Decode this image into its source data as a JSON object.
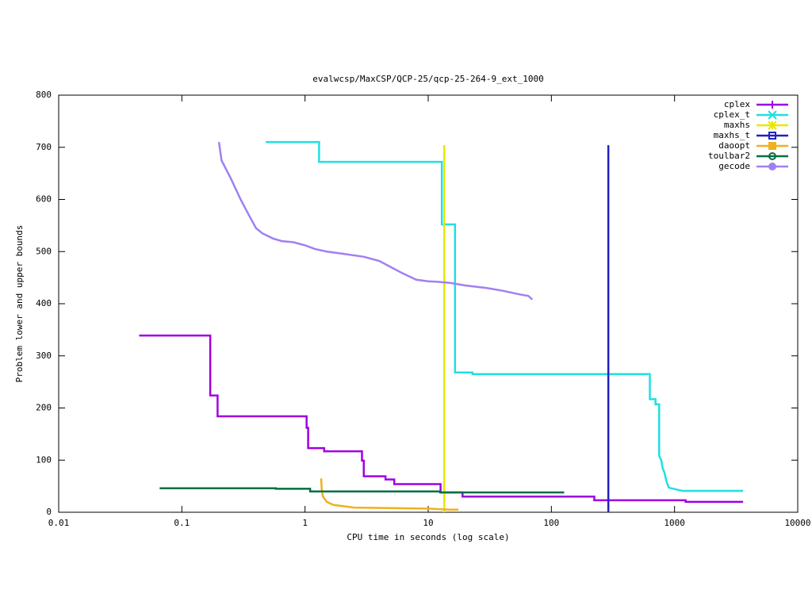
{
  "chart_data": {
    "type": "line",
    "title": "evalwcsp/MaxCSP/QCP-25/qcp-25-264-9_ext_1000",
    "x_label": "CPU time in seconds (log scale)",
    "y_label": "Problem lower and upper bounds",
    "xscale": "log",
    "xlim": [
      0.01,
      10000
    ],
    "xticks": [
      0.01,
      0.1,
      1,
      10,
      100,
      1000,
      10000
    ],
    "ylim": [
      0,
      800
    ],
    "yticks": [
      0,
      100,
      200,
      300,
      400,
      500,
      600,
      700,
      800
    ],
    "legend": "upper right",
    "series": [
      {
        "name": "cplex",
        "color": "#a000e0",
        "marker": "plus",
        "x": [
          0.045,
          0.17,
          0.17,
          0.195,
          0.195,
          1.03,
          1.03,
          1.06,
          1.06,
          1.43,
          1.43,
          2.9,
          2.9,
          3.0,
          3.0,
          4.5,
          4.5,
          5.3,
          5.3,
          12.6,
          12.6,
          19,
          19,
          223,
          223,
          1230,
          1230,
          3600
        ],
        "values": [
          339,
          339,
          224,
          224,
          184,
          184,
          162,
          162,
          123,
          123,
          117,
          117,
          99,
          99,
          69,
          69,
          63,
          63,
          54,
          54,
          38,
          38,
          30,
          30,
          23,
          23,
          20,
          20
        ]
      },
      {
        "name": "cplex_t",
        "color": "#20e0e0",
        "marker": "cross",
        "x": [
          0.48,
          1.3,
          1.3,
          12.9,
          12.9,
          16.5,
          16.5,
          22.9,
          22.9,
          630,
          630,
          700,
          700,
          750,
          750,
          780,
          800,
          830,
          860,
          900,
          1160,
          3600
        ],
        "values": [
          710,
          710,
          672,
          672,
          552,
          552,
          268,
          268,
          265,
          265,
          217,
          217,
          207,
          207,
          108,
          100,
          85,
          75,
          59,
          47,
          41,
          41
        ]
      },
      {
        "name": "maxhs",
        "color": "#e8e800",
        "marker": "star",
        "x": [
          13.5,
          13.5
        ],
        "values": [
          704,
          0
        ]
      },
      {
        "name": "maxhs_t",
        "color": "#2020c0",
        "marker": "square",
        "x": [
          290,
          290
        ],
        "values": [
          704,
          0
        ]
      },
      {
        "name": "daoopt",
        "color": "#f0b020",
        "marker": "filled-square",
        "x": [
          1.35,
          1.37,
          1.4,
          1.5,
          1.7,
          2,
          2.5,
          5,
          10,
          12,
          15,
          17.6
        ],
        "values": [
          65,
          40,
          30,
          20,
          14,
          12,
          9,
          8,
          7,
          6,
          5,
          5
        ]
      },
      {
        "name": "toulbar2",
        "color": "#007040",
        "marker": "circle",
        "x": [
          0.066,
          0.58,
          0.58,
          1.1,
          1.1,
          12.5,
          12.5,
          127
        ],
        "values": [
          46,
          46,
          45,
          45,
          40,
          40,
          38,
          38
        ]
      },
      {
        "name": "gecode",
        "color": "#a080f0",
        "marker": "filled-circle",
        "x": [
          0.2,
          0.21,
          0.25,
          0.3,
          0.35,
          0.4,
          0.45,
          0.55,
          0.65,
          0.8,
          1,
          1.2,
          1.5,
          2,
          3,
          4,
          5,
          6,
          8,
          10,
          12,
          15,
          20,
          30,
          40,
          55,
          65,
          70
        ],
        "values": [
          710,
          675,
          640,
          600,
          570,
          545,
          535,
          525,
          520,
          518,
          512,
          505,
          500,
          496,
          490,
          482,
          470,
          460,
          446,
          443,
          442,
          440,
          435,
          430,
          425,
          418,
          415,
          408
        ]
      }
    ]
  }
}
